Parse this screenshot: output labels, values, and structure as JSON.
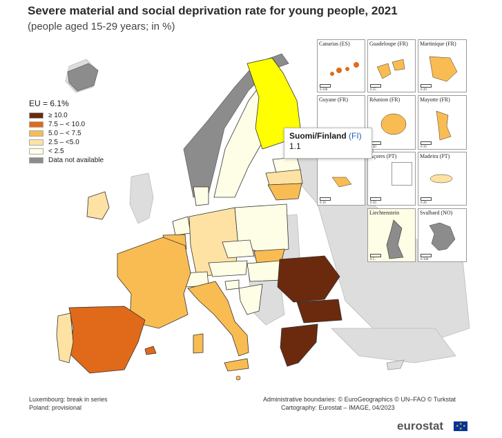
{
  "title": "Severe material and social deprivation rate for young people, 2021",
  "subtitle": "(people aged 15-29 years; in %)",
  "legend": {
    "title": "EU = 6.1%",
    "items": [
      {
        "label": "≥ 10.0",
        "color": "#6b2a0e"
      },
      {
        "label": "7.5 – < 10.0",
        "color": "#e06a1a"
      },
      {
        "label": "5.0 – < 7.5",
        "color": "#f9bc52"
      },
      {
        "label": "2.5 – <5.0",
        "color": "#fde2a3"
      },
      {
        "label": "< 2.5",
        "color": "#fefde6"
      },
      {
        "label": "Data not available",
        "color": "#8c8c8c"
      }
    ]
  },
  "colors": {
    "highlight": "#ffff00",
    "land_outside": "#dddddd",
    "sea": "#ffffff",
    "border": "#333333"
  },
  "tooltip": {
    "name": "Suomi/Finland",
    "code": "(FI)",
    "value": "1.1"
  },
  "insets": [
    {
      "label": "Canarias (ES)",
      "scale": "0    100"
    },
    {
      "label": "Guadeloupe (FR)",
      "scale": "0    25"
    },
    {
      "label": "Martinique (FR)",
      "scale": "0    20"
    },
    {
      "label": "Guyane (FR)",
      "scale": "0    100"
    },
    {
      "label": "Réunion (FR)",
      "scale": "0    20"
    },
    {
      "label": "Mayotte (FR)",
      "scale": "0    10"
    },
    {
      "label": "",
      "scale": "0    10"
    },
    {
      "label": "Açores (PT)",
      "scale": "0    50"
    },
    {
      "label": "Madeira (PT)",
      "scale": "0    20"
    },
    {
      "label": "",
      "scale": ""
    },
    {
      "label": "Liechtenstein",
      "scale": "0    5"
    },
    {
      "label": "Svalbard (NO)",
      "scale": "0    100"
    }
  ],
  "footnotes": {
    "left1": "Luxembourg: break in series",
    "left2": "Poland: provisional",
    "right1": "Administrative boundaries: © EuroGeographics © UN–FAO © Turkstat",
    "right2": "Cartography: Eurostat – IMAGE, 04/2023"
  },
  "brand": "eurostat"
}
